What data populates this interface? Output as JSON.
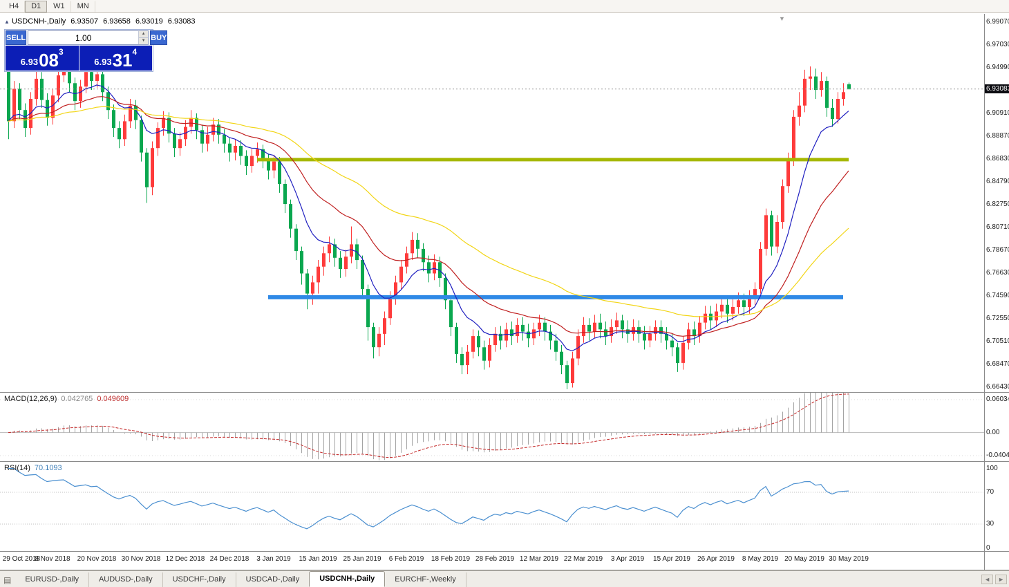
{
  "toolbar": {
    "timeframes": [
      {
        "label": "H4",
        "active": false
      },
      {
        "label": "D1",
        "active": true
      },
      {
        "label": "W1",
        "active": false
      },
      {
        "label": "MN",
        "active": false
      }
    ]
  },
  "icons": {
    "collapse": "▲",
    "spinner_up": "▲",
    "spinner_down": "▼",
    "shift_marker": "▼",
    "tab_list": "▤",
    "scroll_left": "◄",
    "scroll_right": "►"
  },
  "chart": {
    "title": {
      "symbol_timeframe": "USDCNH-,Daily",
      "open": "6.93507",
      "high": "6.93658",
      "low": "6.93019",
      "close": "6.93083"
    },
    "trade_panel": {
      "sell_label": "SELL",
      "buy_label": "BUY",
      "volume": "1.00",
      "sell_price_main": "6.93",
      "sell_price_pips": "08",
      "sell_price_sup": "3",
      "buy_price_main": "6.93",
      "buy_price_pips": "31",
      "buy_price_sup": "4"
    },
    "price_axis": {
      "current_price": "6.93083",
      "labels": [
        "6.99070",
        "6.97030",
        "6.94990",
        "6.92950",
        "6.90910",
        "6.88870",
        "6.86830",
        "6.84790",
        "6.82750",
        "6.80710",
        "6.78670",
        "6.76630",
        "6.74590",
        "6.72550",
        "6.70510",
        "6.68470",
        "6.66430"
      ]
    }
  },
  "macd": {
    "label": "MACD(12,26,9)",
    "value": "0.042765",
    "signal": "0.049609",
    "axis_labels": [
      "0.060342",
      "0.00",
      "-0.040415"
    ]
  },
  "rsi": {
    "label": "RSI(14)",
    "value": "70.1093",
    "axis_labels": [
      "100",
      "70",
      "30",
      "0"
    ],
    "axis_values": [
      100,
      70,
      30,
      0
    ],
    "levels": [
      70,
      30
    ]
  },
  "tabs": {
    "items": [
      {
        "label": "EURUSD-,Daily",
        "active": false
      },
      {
        "label": "AUDUSD-,Daily",
        "active": false
      },
      {
        "label": "USDCHF-,Daily",
        "active": false
      },
      {
        "label": "USDCAD-,Daily",
        "active": false
      },
      {
        "label": "USDCNH-,Daily",
        "active": true
      },
      {
        "label": "EURCHF-,Weekly",
        "active": false
      }
    ]
  },
  "chart_data": {
    "type": "candlestick",
    "symbol": "USDCNH",
    "timeframe": "Daily",
    "price_range": [
      6.66,
      6.998
    ],
    "colors": {
      "bull": "#fe3b3b",
      "bear": "#0aa74f"
    },
    "moving_averages": [
      {
        "name": "ma-fast",
        "period": 10,
        "color": "#1f1fc0"
      },
      {
        "name": "ma-mid",
        "period": 25,
        "color": "#c02020"
      },
      {
        "name": "ma-slow",
        "period": 55,
        "color": "#f2d515"
      }
    ],
    "hlines": [
      {
        "name": "resistance-line",
        "price": 6.8677,
        "color": "#a6b800",
        "width": 5,
        "from_bar": 45,
        "to_bar": 152
      },
      {
        "name": "support-line",
        "price": 6.7447,
        "color": "#2f89e6",
        "width": 6,
        "from_bar": 47,
        "to_bar": 151
      }
    ],
    "macd_settings": {
      "fast": 12,
      "slow": 26,
      "signal": 9,
      "range": [
        -0.036,
        0.05
      ]
    },
    "rsi_settings": {
      "period": 14
    },
    "date_labels": [
      [
        "29 Oct 2018",
        0
      ],
      [
        "8 Nov 2018",
        8
      ],
      [
        "20 Nov 2018",
        16
      ],
      [
        "30 Nov 2018",
        24
      ],
      [
        "12 Dec 2018",
        32
      ],
      [
        "24 Dec 2018",
        40
      ],
      [
        "3 Jan 2019",
        48
      ],
      [
        "15 Jan 2019",
        56
      ],
      [
        "25 Jan 2019",
        64
      ],
      [
        "6 Feb 2019",
        72
      ],
      [
        "18 Feb 2019",
        80
      ],
      [
        "28 Feb 2019",
        88
      ],
      [
        "12 Mar 2019",
        96
      ],
      [
        "22 Mar 2019",
        104
      ],
      [
        "3 Apr 2019",
        112
      ],
      [
        "15 Apr 2019",
        120
      ],
      [
        "26 Apr 2019",
        128
      ],
      [
        "8 May 2019",
        136
      ],
      [
        "20 May 2019",
        144
      ],
      [
        "30 May 2019",
        152
      ]
    ],
    "candles": [
      [
        6.972,
        6.976,
        6.886,
        6.902
      ],
      [
        6.902,
        6.938,
        6.896,
        6.931
      ],
      [
        6.931,
        6.936,
        6.904,
        6.912
      ],
      [
        6.912,
        6.918,
        6.888,
        6.896
      ],
      [
        6.896,
        6.928,
        6.89,
        6.922
      ],
      [
        6.922,
        6.948,
        6.916,
        6.94
      ],
      [
        6.94,
        6.946,
        6.914,
        6.921
      ],
      [
        6.921,
        6.927,
        6.898,
        6.905
      ],
      [
        6.905,
        6.931,
        6.899,
        6.925
      ],
      [
        6.925,
        6.949,
        6.919,
        6.943
      ],
      [
        6.943,
        6.958,
        6.937,
        6.951
      ],
      [
        6.951,
        6.955,
        6.928,
        6.936
      ],
      [
        6.936,
        6.941,
        6.912,
        6.92
      ],
      [
        6.92,
        6.939,
        6.914,
        6.933
      ],
      [
        6.933,
        6.952,
        6.927,
        6.946
      ],
      [
        6.946,
        6.951,
        6.93,
        6.938
      ],
      [
        6.938,
        6.953,
        6.932,
        6.944
      ],
      [
        6.944,
        6.948,
        6.92,
        6.928
      ],
      [
        6.928,
        6.933,
        6.904,
        6.912
      ],
      [
        6.912,
        6.917,
        6.888,
        6.896
      ],
      [
        6.896,
        6.902,
        6.878,
        6.886
      ],
      [
        6.886,
        6.908,
        6.88,
        6.902
      ],
      [
        6.902,
        6.922,
        6.896,
        6.916
      ],
      [
        6.916,
        6.921,
        6.895,
        6.903
      ],
      [
        6.903,
        6.907,
        6.866,
        6.874
      ],
      [
        6.874,
        6.878,
        6.829,
        6.843
      ],
      [
        6.843,
        6.884,
        6.836,
        6.878
      ],
      [
        6.878,
        6.901,
        6.871,
        6.896
      ],
      [
        6.896,
        6.911,
        6.889,
        6.905
      ],
      [
        6.905,
        6.91,
        6.883,
        6.891
      ],
      [
        6.891,
        6.896,
        6.87,
        6.878
      ],
      [
        6.878,
        6.892,
        6.871,
        6.886
      ],
      [
        6.886,
        6.903,
        6.88,
        6.897
      ],
      [
        6.897,
        6.912,
        6.891,
        6.905
      ],
      [
        6.905,
        6.909,
        6.886,
        6.894
      ],
      [
        6.894,
        6.899,
        6.874,
        6.882
      ],
      [
        6.882,
        6.897,
        6.875,
        6.89
      ],
      [
        6.89,
        6.905,
        6.884,
        6.899
      ],
      [
        6.899,
        6.904,
        6.882,
        6.89
      ],
      [
        6.89,
        6.895,
        6.874,
        6.882
      ],
      [
        6.882,
        6.887,
        6.866,
        6.874
      ],
      [
        6.874,
        6.886,
        6.867,
        6.88
      ],
      [
        6.88,
        6.885,
        6.863,
        6.871
      ],
      [
        6.871,
        6.876,
        6.854,
        6.862
      ],
      [
        6.862,
        6.877,
        6.856,
        6.871
      ],
      [
        6.871,
        6.883,
        6.865,
        6.877
      ],
      [
        6.877,
        6.881,
        6.86,
        6.868
      ],
      [
        6.868,
        6.873,
        6.85,
        6.858
      ],
      [
        6.858,
        6.872,
        6.851,
        6.866
      ],
      [
        6.866,
        6.87,
        6.838,
        6.846
      ],
      [
        6.846,
        6.85,
        6.82,
        6.828
      ],
      [
        6.828,
        6.832,
        6.798,
        6.806
      ],
      [
        6.806,
        6.81,
        6.778,
        6.786
      ],
      [
        6.786,
        6.79,
        6.756,
        6.766
      ],
      [
        6.766,
        6.77,
        6.734,
        6.748
      ],
      [
        6.748,
        6.764,
        6.738,
        6.758
      ],
      [
        6.758,
        6.778,
        6.748,
        6.772
      ],
      [
        6.772,
        6.79,
        6.764,
        6.784
      ],
      [
        6.784,
        6.799,
        6.776,
        6.792
      ],
      [
        6.792,
        6.797,
        6.772,
        6.78
      ],
      [
        6.78,
        6.786,
        6.762,
        6.77
      ],
      [
        6.77,
        6.787,
        6.763,
        6.781
      ],
      [
        6.781,
        6.808,
        6.775,
        6.792
      ],
      [
        6.792,
        6.797,
        6.77,
        6.778
      ],
      [
        6.778,
        6.782,
        6.744,
        6.752
      ],
      [
        6.752,
        6.756,
        6.706,
        6.718
      ],
      [
        6.718,
        6.722,
        6.69,
        6.7
      ],
      [
        6.7,
        6.718,
        6.692,
        6.712
      ],
      [
        6.712,
        6.732,
        6.702,
        6.726
      ],
      [
        6.726,
        6.75,
        6.72,
        6.744
      ],
      [
        6.744,
        6.764,
        6.738,
        6.758
      ],
      [
        6.758,
        6.778,
        6.752,
        6.772
      ],
      [
        6.772,
        6.79,
        6.766,
        6.784
      ],
      [
        6.784,
        6.803,
        6.778,
        6.796
      ],
      [
        6.796,
        6.802,
        6.78,
        6.788
      ],
      [
        6.788,
        6.793,
        6.768,
        6.776
      ],
      [
        6.776,
        6.782,
        6.758,
        6.766
      ],
      [
        6.766,
        6.783,
        6.76,
        6.776
      ],
      [
        6.776,
        6.781,
        6.754,
        6.762
      ],
      [
        6.762,
        6.766,
        6.734,
        6.742
      ],
      [
        6.742,
        6.746,
        6.71,
        6.718
      ],
      [
        6.718,
        6.722,
        6.686,
        6.694
      ],
      [
        6.694,
        6.7,
        6.676,
        6.684
      ],
      [
        6.684,
        6.702,
        6.676,
        6.696
      ],
      [
        6.696,
        6.716,
        6.69,
        6.71
      ],
      [
        6.71,
        6.715,
        6.692,
        6.7
      ],
      [
        6.7,
        6.706,
        6.68,
        6.688
      ],
      [
        6.688,
        6.708,
        6.682,
        6.702
      ],
      [
        6.702,
        6.718,
        6.696,
        6.712
      ],
      [
        6.712,
        6.719,
        6.698,
        6.706
      ],
      [
        6.706,
        6.722,
        6.7,
        6.716
      ],
      [
        6.716,
        6.723,
        6.702,
        6.71
      ],
      [
        6.71,
        6.726,
        6.704,
        6.72
      ],
      [
        6.72,
        6.727,
        6.706,
        6.714
      ],
      [
        6.714,
        6.721,
        6.7,
        6.708
      ],
      [
        6.708,
        6.722,
        6.702,
        6.716
      ],
      [
        6.716,
        6.729,
        6.71,
        6.722
      ],
      [
        6.722,
        6.727,
        6.706,
        6.714
      ],
      [
        6.714,
        6.72,
        6.698,
        6.706
      ],
      [
        6.706,
        6.712,
        6.688,
        6.696
      ],
      [
        6.696,
        6.702,
        6.676,
        6.684
      ],
      [
        6.684,
        6.688,
        6.6625,
        6.668
      ],
      [
        6.668,
        6.696,
        6.664,
        6.69
      ],
      [
        6.69,
        6.716,
        6.684,
        6.71
      ],
      [
        6.71,
        6.727,
        6.704,
        6.72
      ],
      [
        6.72,
        6.726,
        6.706,
        6.714
      ],
      [
        6.714,
        6.729,
        6.708,
        6.722
      ],
      [
        6.722,
        6.73,
        6.708,
        6.716
      ],
      [
        6.716,
        6.723,
        6.702,
        6.71
      ],
      [
        6.71,
        6.725,
        6.704,
        6.718
      ],
      [
        6.718,
        6.731,
        6.712,
        6.724
      ],
      [
        6.724,
        6.729,
        6.708,
        6.716
      ],
      [
        6.716,
        6.724,
        6.704,
        6.712
      ],
      [
        6.712,
        6.725,
        6.706,
        6.718
      ],
      [
        6.718,
        6.724,
        6.704,
        6.712
      ],
      [
        6.712,
        6.719,
        6.698,
        6.706
      ],
      [
        6.706,
        6.719,
        6.7,
        6.712
      ],
      [
        6.712,
        6.724,
        6.706,
        6.718
      ],
      [
        6.718,
        6.724,
        6.704,
        6.712
      ],
      [
        6.712,
        6.718,
        6.698,
        6.706
      ],
      [
        6.706,
        6.712,
        6.692,
        6.7
      ],
      [
        6.7,
        6.704,
        6.678,
        6.686
      ],
      [
        6.686,
        6.71,
        6.68,
        6.704
      ],
      [
        6.704,
        6.722,
        6.698,
        6.716
      ],
      [
        6.716,
        6.723,
        6.702,
        6.71
      ],
      [
        6.71,
        6.728,
        6.704,
        6.722
      ],
      [
        6.722,
        6.737,
        6.716,
        6.73
      ],
      [
        6.73,
        6.737,
        6.716,
        6.724
      ],
      [
        6.724,
        6.739,
        6.718,
        6.732
      ],
      [
        6.732,
        6.746,
        6.726,
        6.738
      ],
      [
        6.738,
        6.744,
        6.722,
        6.73
      ],
      [
        6.73,
        6.743,
        6.724,
        6.736
      ],
      [
        6.736,
        6.749,
        6.73,
        6.742
      ],
      [
        6.742,
        6.748,
        6.728,
        6.736
      ],
      [
        6.736,
        6.751,
        6.73,
        6.744
      ],
      [
        6.744,
        6.758,
        6.738,
        6.752
      ],
      [
        6.752,
        6.794,
        6.748,
        6.788
      ],
      [
        6.788,
        6.824,
        6.782,
        6.818
      ],
      [
        6.818,
        6.822,
        6.782,
        6.79
      ],
      [
        6.79,
        6.818,
        6.784,
        6.812
      ],
      [
        6.812,
        6.85,
        6.806,
        6.844
      ],
      [
        6.844,
        6.874,
        6.838,
        6.868
      ],
      [
        6.868,
        6.912,
        6.862,
        6.906
      ],
      [
        6.906,
        6.928,
        6.898,
        6.916
      ],
      [
        6.916,
        6.948,
        6.91,
        6.94
      ],
      [
        6.94,
        6.951,
        6.93,
        6.942
      ],
      [
        6.942,
        6.949,
        6.922,
        6.93
      ],
      [
        6.93,
        6.946,
        6.924,
        6.938
      ],
      [
        6.938,
        6.942,
        6.906,
        6.914
      ],
      [
        6.914,
        6.922,
        6.897,
        6.904
      ],
      [
        6.904,
        6.928,
        6.9,
        6.922
      ],
      [
        6.922,
        6.936,
        6.916,
        6.928
      ],
      [
        6.93507,
        6.93658,
        6.93019,
        6.93083
      ]
    ]
  }
}
